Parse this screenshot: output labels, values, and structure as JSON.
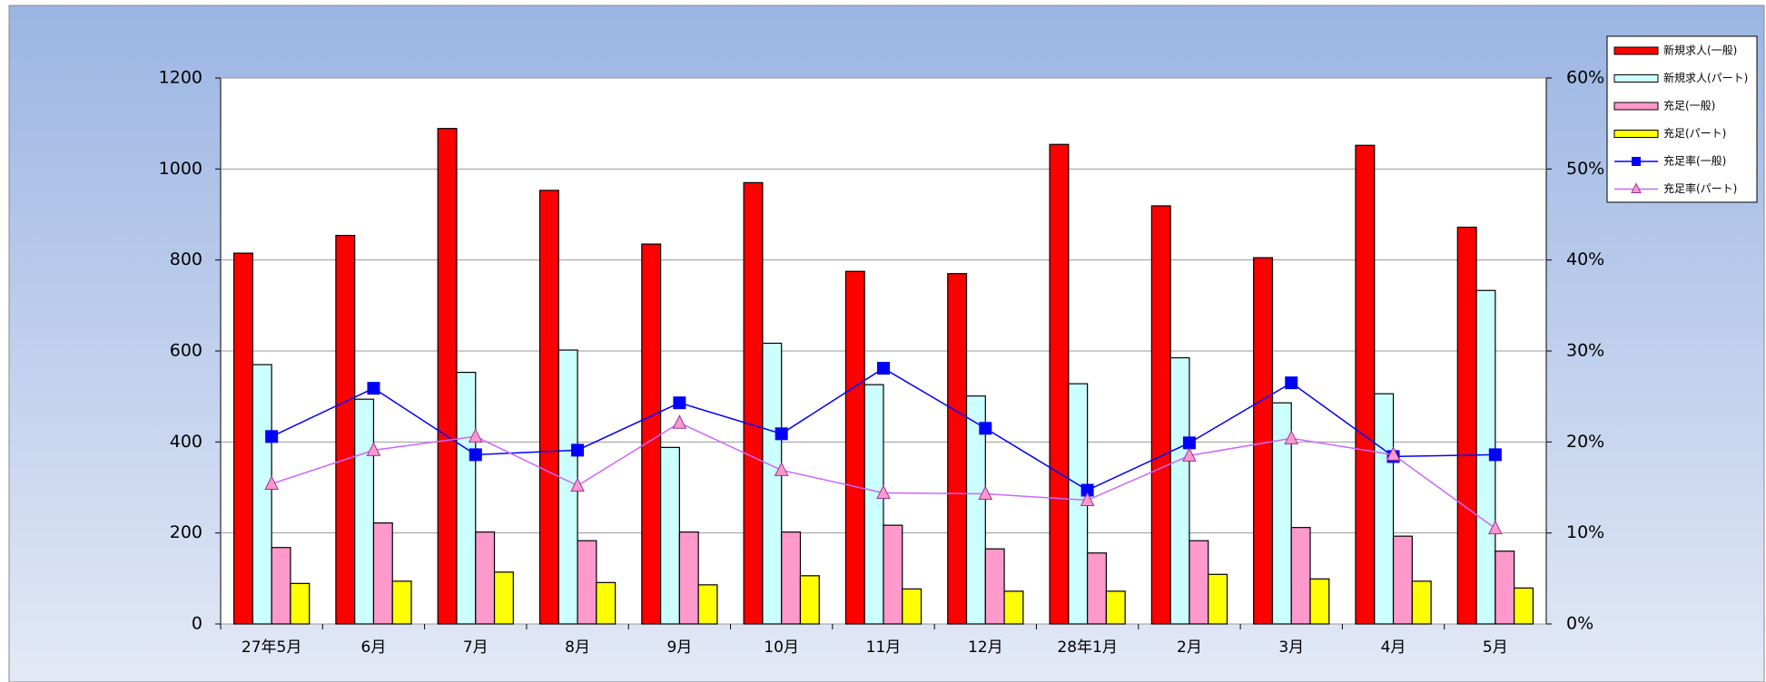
{
  "chart_data": {
    "type": "bar",
    "categories": [
      "27年5月",
      "6月",
      "7月",
      "8月",
      "9月",
      "10月",
      "11月",
      "12月",
      "28年1月",
      "2月",
      "3月",
      "4月",
      "5月"
    ],
    "series": [
      {
        "name": "新規求人(一般)",
        "color": "#ff0000",
        "values": [
          815,
          854,
          1089,
          953,
          835,
          970,
          775,
          770,
          1054,
          919,
          805,
          1052,
          872
        ]
      },
      {
        "name": "新規求人(パート)",
        "color": "#ccffff",
        "values": [
          570,
          494,
          553,
          602,
          388,
          617,
          526,
          501,
          528,
          585,
          486,
          506,
          733
        ]
      },
      {
        "name": "充足(一般)",
        "color": "#ff99cc",
        "values": [
          168,
          222,
          202,
          183,
          202,
          202,
          217,
          165,
          156,
          183,
          212,
          193,
          160
        ]
      },
      {
        "name": "充足(パート)",
        "color": "#ffff00",
        "values": [
          89,
          94,
          114,
          91,
          86,
          106,
          77,
          72,
          72,
          109,
          99,
          94,
          79
        ]
      },
      {
        "name": "充足率(一般)",
        "color": "#0000ff",
        "type": "line",
        "marker": "square",
        "axis": "y2",
        "values": [
          20.6,
          25.9,
          18.6,
          19.1,
          24.3,
          20.9,
          28.1,
          21.5,
          14.7,
          19.9,
          26.5,
          18.4,
          18.6
        ]
      },
      {
        "name": "充足率(パート)",
        "color": "#cc66ff",
        "type": "line",
        "marker": "triangle",
        "axis": "y2",
        "values": [
          15.4,
          19.1,
          20.6,
          15.2,
          22.1,
          16.9,
          14.4,
          14.3,
          13.6,
          18.5,
          20.4,
          18.6,
          10.5
        ]
      }
    ],
    "ylim": [
      0,
      1200
    ],
    "yticks": [
      0,
      200,
      400,
      600,
      800,
      1000,
      1200
    ],
    "y2lim": [
      0,
      60
    ],
    "y2ticks": [
      {
        "value": 0,
        "label": "0%"
      },
      {
        "value": 10,
        "label": "10%"
      },
      {
        "value": 20,
        "label": "20%"
      },
      {
        "value": 30,
        "label": "30%"
      },
      {
        "value": 40,
        "label": "40%"
      },
      {
        "value": 50,
        "label": "50%"
      },
      {
        "value": 60,
        "label": "60%"
      }
    ],
    "grid": true,
    "legend": "right"
  }
}
